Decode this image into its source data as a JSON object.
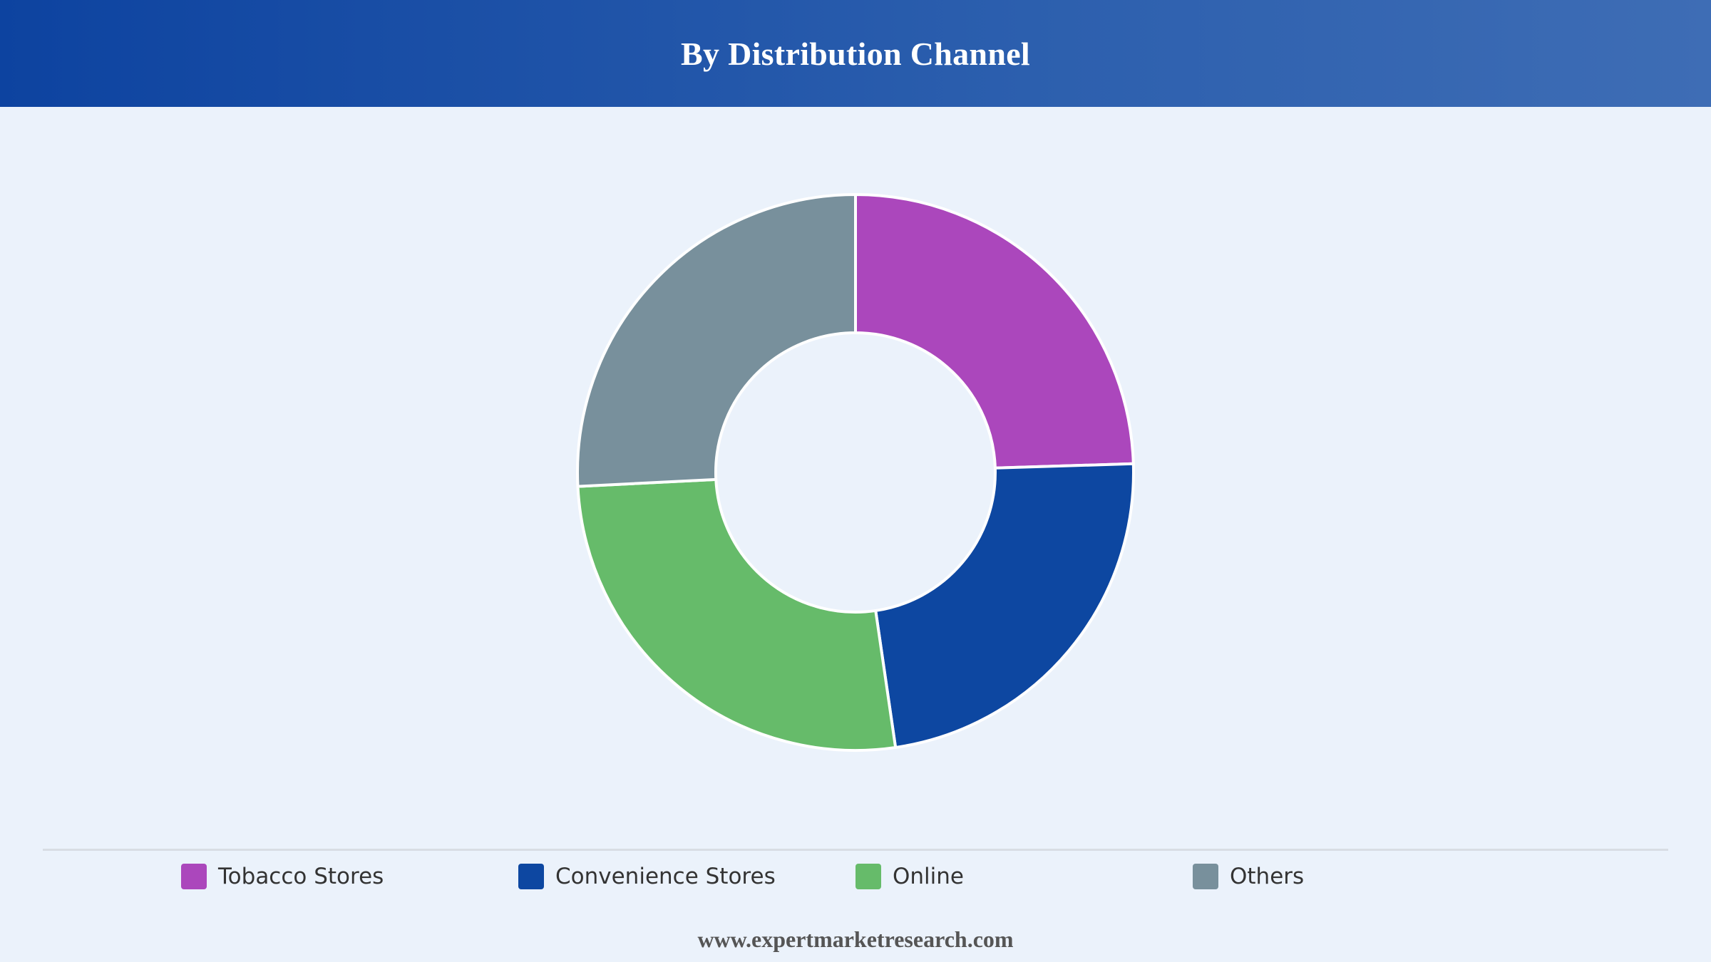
{
  "header": {
    "title": "By Distribution Channel"
  },
  "chart_data": {
    "type": "pie",
    "subtype": "donut",
    "title": "By Distribution Channel",
    "categories": [
      "Tobacco Stores",
      "Convenience Stores",
      "Online",
      "Others"
    ],
    "values": [
      24.5,
      23.2,
      26.5,
      25.8
    ],
    "unit": "%",
    "colors": [
      "#ab47bc",
      "#0d47a1",
      "#66bb6a",
      "#78909c"
    ],
    "legend_position": "bottom",
    "data_labels": false
  },
  "legend": {
    "items": [
      {
        "label": "Tobacco Stores",
        "color": "#ab47bc"
      },
      {
        "label": "Convenience Stores",
        "color": "#0d47a1"
      },
      {
        "label": "Online",
        "color": "#66bb6a"
      },
      {
        "label": "Others",
        "color": "#78909c"
      }
    ]
  },
  "footer": {
    "source": "www.expertmarketresearch.com"
  }
}
